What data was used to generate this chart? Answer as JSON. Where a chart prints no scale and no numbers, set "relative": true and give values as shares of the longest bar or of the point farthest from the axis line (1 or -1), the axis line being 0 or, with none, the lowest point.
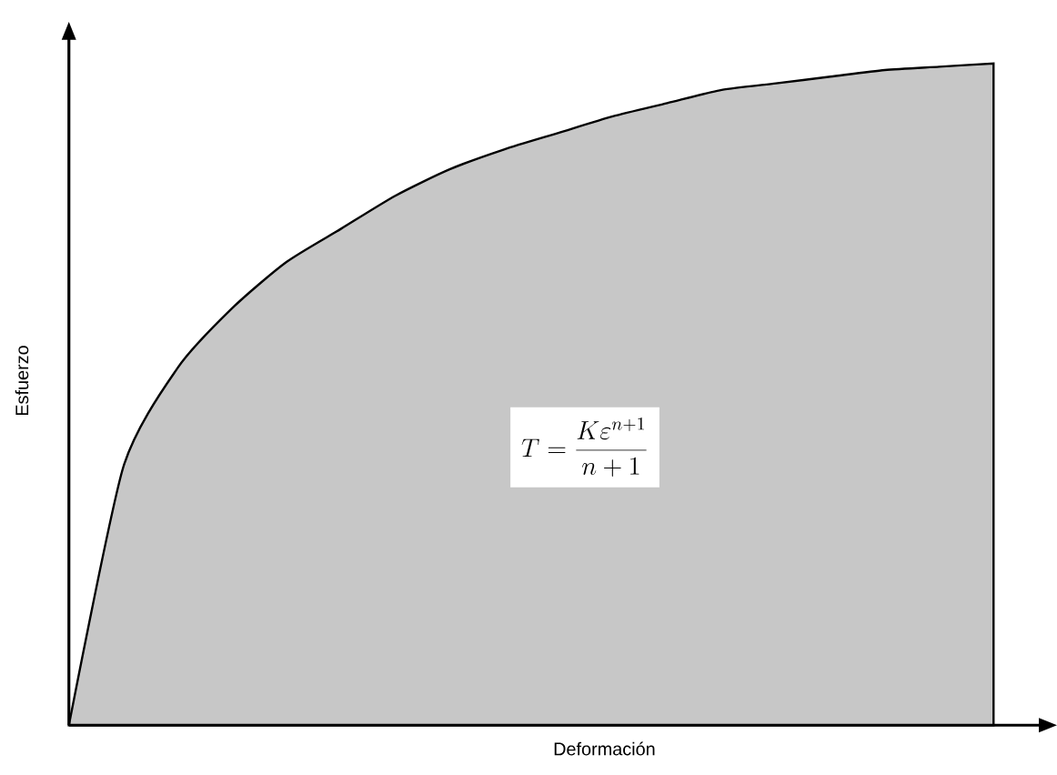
{
  "chart_data": {
    "type": "area",
    "relative": true,
    "xlabel": "Deformación",
    "ylabel": "Esfuerzo",
    "categories": [
      null,
      null,
      null,
      null,
      null,
      null,
      null,
      null,
      null,
      null,
      null,
      null,
      null,
      null,
      null,
      null,
      null,
      null
    ],
    "series": [
      {
        "color": "#000000",
        "values": [
          0,
          0.39,
          0.54,
          0.63,
          0.7,
          0.75,
          0.8,
          0.84,
          0.87,
          0.895,
          0.92,
          0.94,
          0.96,
          0.97,
          0.98,
          0.99,
          0.995,
          1.0
        ]
      }
    ],
    "annotations": [
      "T=\\frac{K\\varepsilon^{n+1}}{n+1}"
    ]
  }
}
